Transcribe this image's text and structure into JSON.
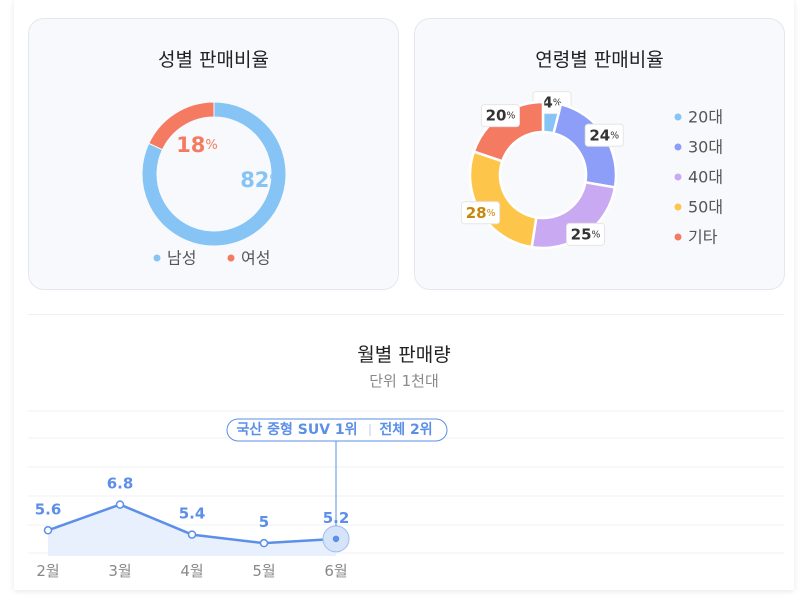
{
  "colors": {
    "male": "#85c4f5",
    "female": "#f47b62",
    "age20": "#85c4f5",
    "age30": "#8c9ef7",
    "age40": "#c9aaf2",
    "age50": "#fdc64a",
    "other": "#f47b62",
    "line": "#5b8fe8"
  },
  "chart_data": [
    {
      "type": "pie",
      "title": "성별 판매비율",
      "unit": "%",
      "categories": [
        "남성",
        "여성"
      ],
      "values": [
        82,
        18
      ],
      "legend": "bottom"
    },
    {
      "type": "pie",
      "title": "연령별 판매비율",
      "unit": "%",
      "categories": [
        "20대",
        "30대",
        "40대",
        "50대",
        "기타"
      ],
      "values": [
        4,
        24,
        25,
        28,
        20
      ],
      "legend": "right"
    },
    {
      "type": "line",
      "title": "월별 판매량",
      "subtitle": "단위 1천대",
      "categories": [
        "2월",
        "3월",
        "4월",
        "5월",
        "6월"
      ],
      "values": [
        5.6,
        6.8,
        5.4,
        5,
        5.2
      ],
      "grid": true,
      "annotation": {
        "category": "6월",
        "left": "국산 중형 SUV 1위",
        "right": "전체 2위"
      }
    }
  ]
}
